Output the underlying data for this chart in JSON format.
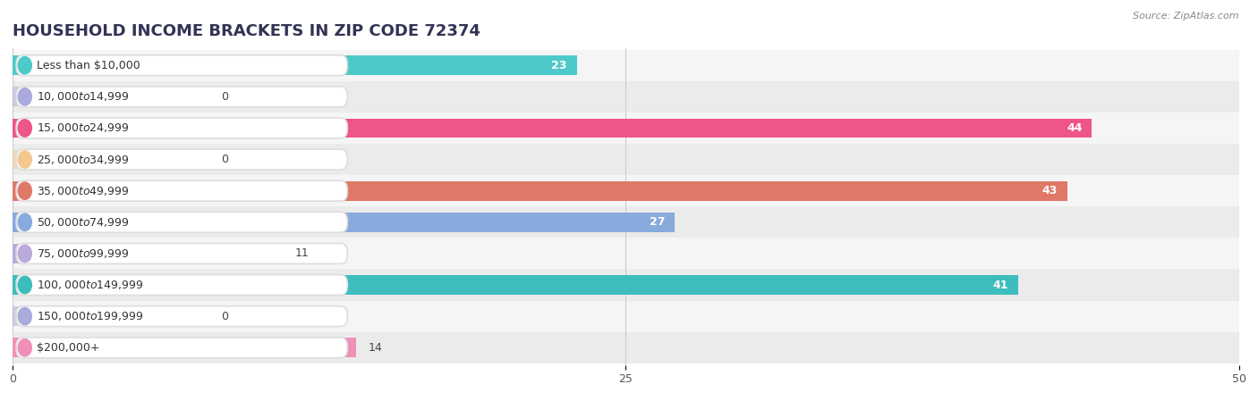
{
  "title": "HOUSEHOLD INCOME BRACKETS IN ZIP CODE 72374",
  "source": "Source: ZipAtlas.com",
  "categories": [
    "Less than $10,000",
    "$10,000 to $14,999",
    "$15,000 to $24,999",
    "$25,000 to $34,999",
    "$35,000 to $49,999",
    "$50,000 to $74,999",
    "$75,000 to $99,999",
    "$100,000 to $149,999",
    "$150,000 to $199,999",
    "$200,000+"
  ],
  "values": [
    23,
    0,
    44,
    0,
    43,
    27,
    11,
    41,
    0,
    14
  ],
  "colors": [
    "#4ec9c9",
    "#aaaadd",
    "#ee5588",
    "#f5c890",
    "#e07868",
    "#88aadd",
    "#bbaadd",
    "#3dbdbd",
    "#aaaadd",
    "#f090b8"
  ],
  "xlim": [
    0,
    50
  ],
  "xticks": [
    0,
    25,
    50
  ],
  "background_color": "#ffffff",
  "row_colors": [
    "#f5f5f5",
    "#ebebeb"
  ],
  "title_fontsize": 13,
  "label_fontsize": 9,
  "value_fontsize": 9
}
